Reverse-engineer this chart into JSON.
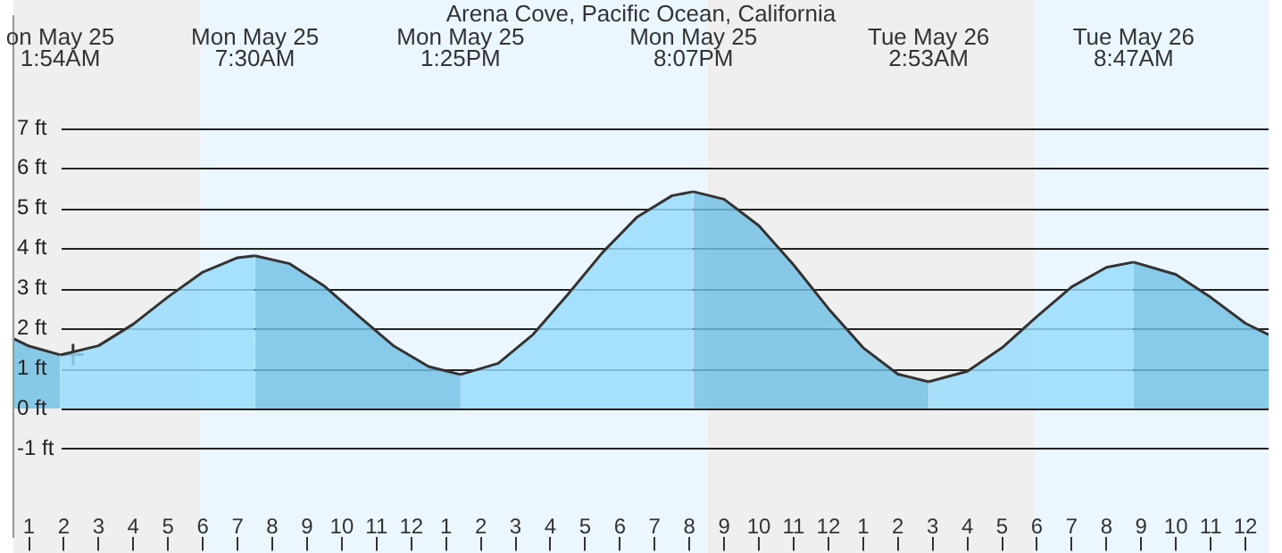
{
  "chart_data": {
    "type": "area",
    "title": "Arena Cove, Pacific Ocean, California",
    "annotations": [
      "on May 25\n1:54AM",
      "Mon May 25\n7:30AM",
      "Mon May 25\n1:25PM",
      "Mon May 25\n8:07PM",
      "Tue May 26\n2:53AM",
      "Tue May 26\n8:47AM"
    ],
    "series": [
      {
        "color": "#70bfe4",
        "x": [
          "--05-25T00:33",
          "--05-25T01:00",
          "--05-25T01:54"
        ],
        "values": [
          1.75,
          1.56,
          1.34
        ]
      },
      {
        "color": "#95dcfd",
        "x": [
          "--05-25T01:54",
          "--05-25T03:00",
          "--05-25T04:00",
          "--05-25T05:00",
          "--05-25T06:00",
          "--05-25T07:00",
          "--05-25T07:30"
        ],
        "values": [
          1.34,
          1.57,
          2.11,
          2.79,
          3.41,
          3.77,
          3.82
        ]
      },
      {
        "color": "#70bfe4",
        "x": [
          "--05-25T07:30",
          "--05-25T08:30",
          "--05-25T09:30",
          "--05-25T10:30",
          "--05-25T11:30",
          "--05-25T12:30",
          "--05-25T13:25"
        ],
        "values": [
          3.82,
          3.62,
          3.06,
          2.3,
          1.56,
          1.05,
          0.85
        ]
      },
      {
        "color": "#95dcfd",
        "x": [
          "--05-25T13:25",
          "--05-25T14:30",
          "--05-25T15:30",
          "--05-25T16:30",
          "--05-25T17:30",
          "--05-25T18:30",
          "--05-25T19:30",
          "--05-25T20:07"
        ],
        "values": [
          0.85,
          1.13,
          1.85,
          2.85,
          3.9,
          4.79,
          5.32,
          5.42
        ]
      },
      {
        "color": "#70bfe4",
        "x": [
          "--05-25T20:07",
          "--05-25T21:00",
          "--05-25T22:00",
          "--05-25T23:00",
          "--05-26T00:00",
          "--05-26T01:00",
          "--05-26T02:00",
          "--05-26T02:53"
        ],
        "values": [
          5.42,
          5.23,
          4.57,
          3.59,
          2.5,
          1.52,
          0.86,
          0.67
        ]
      },
      {
        "color": "#95dcfd",
        "x": [
          "--05-26T02:53",
          "--05-26T04:00",
          "--05-26T05:00",
          "--05-26T06:00",
          "--05-26T07:00",
          "--05-26T08:00",
          "--05-26T08:47"
        ],
        "values": [
          0.67,
          0.93,
          1.52,
          2.3,
          3.04,
          3.53,
          3.66
        ]
      },
      {
        "color": "#70bfe4",
        "x": [
          "--05-26T08:47",
          "--05-26T10:00",
          "--05-26T11:00",
          "--05-26T12:00",
          "--05-26T12:40"
        ],
        "values": [
          3.66,
          3.35,
          2.78,
          2.13,
          1.85
        ]
      },
      {
        "type": "scatter",
        "color": "#333333",
        "marker": "cross",
        "x": [
          "--05-25T02:16"
        ],
        "values": [
          1.35
        ]
      }
    ],
    "bands": [
      {
        "axis": "x",
        "from": "--05-25T00:33",
        "to": "--05-25T05:56",
        "color": "#efefef"
      },
      {
        "axis": "x",
        "from": "--05-25T05:56",
        "to": "--05-25T20:31",
        "color": "#ebf6ff"
      },
      {
        "axis": "x",
        "from": "--05-25T20:31",
        "to": "--05-26T05:56",
        "color": "#efefef"
      },
      {
        "axis": "x",
        "from": "--05-26T05:56",
        "to": "--05-26T12:40",
        "color": "#ebf6ff"
      }
    ],
    "xlim": [
      "--05-25T00:33",
      "--05-26T12:40"
    ],
    "xticks": [
      {
        "value": "--05-25T01:00",
        "label": "1"
      },
      {
        "value": "--05-25T02:00",
        "label": "2"
      },
      {
        "value": "--05-25T03:00",
        "label": "3"
      },
      {
        "value": "--05-25T04:00",
        "label": "4"
      },
      {
        "value": "--05-25T05:00",
        "label": "5"
      },
      {
        "value": "--05-25T06:00",
        "label": "6"
      },
      {
        "value": "--05-25T07:00",
        "label": "7"
      },
      {
        "value": "--05-25T08:00",
        "label": "8"
      },
      {
        "value": "--05-25T09:00",
        "label": "9"
      },
      {
        "value": "--05-25T10:00",
        "label": "10"
      },
      {
        "value": "--05-25T11:00",
        "label": "11"
      },
      {
        "value": "--05-25T12:00",
        "label": "12"
      },
      {
        "value": "--05-25T13:00",
        "label": "1"
      },
      {
        "value": "--05-25T14:00",
        "label": "2"
      },
      {
        "value": "--05-25T15:00",
        "label": "3"
      },
      {
        "value": "--05-25T16:00",
        "label": "4"
      },
      {
        "value": "--05-25T17:00",
        "label": "5"
      },
      {
        "value": "--05-25T18:00",
        "label": "6"
      },
      {
        "value": "--05-25T19:00",
        "label": "7"
      },
      {
        "value": "--05-25T20:00",
        "label": "8"
      },
      {
        "value": "--05-25T21:00",
        "label": "9"
      },
      {
        "value": "--05-25T22:00",
        "label": "10"
      },
      {
        "value": "--05-25T23:00",
        "label": "11"
      },
      {
        "value": "--05-26T00:00",
        "label": "12"
      },
      {
        "value": "--05-26T01:00",
        "label": "1"
      },
      {
        "value": "--05-26T02:00",
        "label": "2"
      },
      {
        "value": "--05-26T03:00",
        "label": "3"
      },
      {
        "value": "--05-26T04:00",
        "label": "4"
      },
      {
        "value": "--05-26T05:00",
        "label": "5"
      },
      {
        "value": "--05-26T06:00",
        "label": "6"
      },
      {
        "value": "--05-26T07:00",
        "label": "7"
      },
      {
        "value": "--05-26T08:00",
        "label": "8"
      },
      {
        "value": "--05-26T09:00",
        "label": "9"
      },
      {
        "value": "--05-26T10:00",
        "label": "10"
      },
      {
        "value": "--05-26T11:00",
        "label": "11"
      },
      {
        "value": "--05-26T12:00",
        "label": "12"
      }
    ],
    "ylim": [
      -3.2,
      9.8
    ],
    "yticks": [
      {
        "value": -1,
        "label": "-1 ft"
      },
      {
        "value": 0,
        "label": "0 ft"
      },
      {
        "value": 1,
        "label": "1 ft"
      },
      {
        "value": 2,
        "label": "2 ft"
      },
      {
        "value": 3,
        "label": "3 ft"
      },
      {
        "value": 4,
        "label": "4 ft"
      },
      {
        "value": 5,
        "label": "5 ft"
      },
      {
        "value": 6,
        "label": "6 ft"
      },
      {
        "value": 7,
        "label": "7 ft"
      }
    ],
    "grid": "y",
    "legend": false
  }
}
